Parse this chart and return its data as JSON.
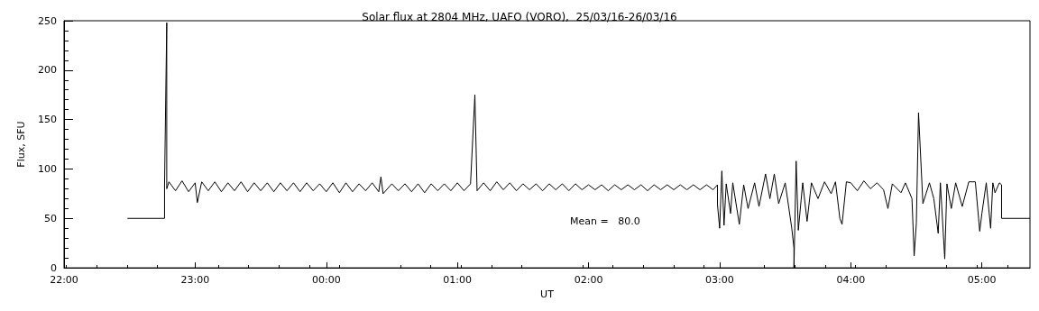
{
  "chart_data": {
    "type": "line",
    "title": "Solar flux at 2804 MHz, UAFO (VORO),  25/03/16-26/03/16",
    "xlabel": "UT",
    "ylabel": "Flux, SFU",
    "annotations": [
      "Mean =   80.0"
    ],
    "xlim": [
      "--03-25T22:00",
      "--03-26T05:22"
    ],
    "xticks": [
      {
        "value": "--03-25T22:00",
        "label": "22:00"
      },
      {
        "value": "--03-25T23:00",
        "label": "23:00"
      },
      {
        "value": "--03-26T00:00",
        "label": "00:00"
      },
      {
        "value": "--03-26T01:00",
        "label": "01:00"
      },
      {
        "value": "--03-26T02:00",
        "label": "02:00"
      },
      {
        "value": "--03-26T03:00",
        "label": "03:00"
      },
      {
        "value": "--03-26T04:00",
        "label": "04:00"
      },
      {
        "value": "--03-26T05:00",
        "label": "05:00"
      }
    ],
    "ylim": [
      0,
      250
    ],
    "yticks": [
      0,
      50,
      100,
      150,
      200,
      250
    ],
    "grid": false,
    "marker": "none",
    "line_style": "solid",
    "series": [
      {
        "color": "#000000",
        "x": [
          "--03-25T22:29",
          "--03-25T22:46",
          "--03-25T22:46",
          "--03-25T22:47",
          "--03-25T22:47",
          "--03-25T22:48",
          "--03-25T22:51",
          "--03-25T22:54",
          "--03-25T22:57",
          "--03-25T23:00",
          "--03-25T23:01",
          "--03-25T23:03",
          "--03-25T23:06",
          "--03-25T23:09",
          "--03-25T23:12",
          "--03-25T23:15",
          "--03-25T23:18",
          "--03-25T23:21",
          "--03-25T23:24",
          "--03-25T23:27",
          "--03-25T23:30",
          "--03-25T23:33",
          "--03-25T23:36",
          "--03-25T23:39",
          "--03-25T23:42",
          "--03-25T23:45",
          "--03-25T23:48",
          "--03-25T23:51",
          "--03-25T23:54",
          "--03-25T23:57",
          "--03-26T00:00",
          "--03-26T00:03",
          "--03-26T00:06",
          "--03-26T00:09",
          "--03-26T00:12",
          "--03-26T00:15",
          "--03-26T00:18",
          "--03-26T00:21",
          "--03-26T00:24",
          "--03-26T00:25",
          "--03-26T00:26",
          "--03-26T00:30",
          "--03-26T00:33",
          "--03-26T00:36",
          "--03-26T00:39",
          "--03-26T00:42",
          "--03-26T00:45",
          "--03-26T00:48",
          "--03-26T00:51",
          "--03-26T00:54",
          "--03-26T00:57",
          "--03-26T01:00",
          "--03-26T01:03",
          "--03-26T01:06",
          "--03-26T01:08",
          "--03-26T01:09",
          "--03-26T01:12",
          "--03-26T01:15",
          "--03-26T01:18",
          "--03-26T01:21",
          "--03-26T01:24",
          "--03-26T01:27",
          "--03-26T01:30",
          "--03-26T01:33",
          "--03-26T01:36",
          "--03-26T01:39",
          "--03-26T01:42",
          "--03-26T01:45",
          "--03-26T01:48",
          "--03-26T01:51",
          "--03-26T01:54",
          "--03-26T01:57",
          "--03-26T02:00",
          "--03-26T02:03",
          "--03-26T02:06",
          "--03-26T02:09",
          "--03-26T02:12",
          "--03-26T02:15",
          "--03-26T02:18",
          "--03-26T02:21",
          "--03-26T02:24",
          "--03-26T02:27",
          "--03-26T02:30",
          "--03-26T02:33",
          "--03-26T02:36",
          "--03-26T02:39",
          "--03-26T02:42",
          "--03-26T02:45",
          "--03-26T02:48",
          "--03-26T02:51",
          "--03-26T02:54",
          "--03-26T02:57",
          "--03-26T02:59",
          "--03-26T02:59",
          "--03-26T03:00",
          "--03-26T03:01",
          "--03-26T03:02",
          "--03-26T03:03",
          "--03-26T03:05",
          "--03-26T03:06",
          "--03-26T03:09",
          "--03-26T03:11",
          "--03-26T03:13",
          "--03-26T03:16",
          "--03-26T03:18",
          "--03-26T03:21",
          "--03-26T03:23",
          "--03-26T03:25",
          "--03-26T03:27",
          "--03-26T03:30",
          "--03-26T03:33",
          "--03-26T03:34",
          "--03-26T03:34",
          "--03-26T03:35",
          "--03-26T03:36",
          "--03-26T03:38",
          "--03-26T03:40",
          "--03-26T03:42",
          "--03-26T03:45",
          "--03-26T03:48",
          "--03-26T03:51",
          "--03-26T03:53",
          "--03-26T03:55",
          "--03-26T03:56",
          "--03-26T03:58",
          "--03-26T04:00",
          "--03-26T04:03",
          "--03-26T04:06",
          "--03-26T04:09",
          "--03-26T04:12",
          "--03-26T04:15",
          "--03-26T04:17",
          "--03-26T04:19",
          "--03-26T04:23",
          "--03-26T04:25",
          "--03-26T04:28",
          "--03-26T04:29",
          "--03-26T04:30",
          "--03-26T04:31",
          "--03-26T04:33",
          "--03-26T04:36",
          "--03-26T04:38",
          "--03-26T04:40",
          "--03-26T04:41",
          "--03-26T04:43",
          "--03-26T04:44",
          "--03-26T04:46",
          "--03-26T04:48",
          "--03-26T04:51",
          "--03-26T04:54",
          "--03-26T04:57",
          "--03-26T04:59",
          "--03-26T05:00",
          "--03-26T05:02",
          "--03-26T05:04",
          "--03-26T05:05",
          "--03-26T05:06",
          "--03-26T05:08",
          "--03-26T05:09",
          "--03-26T05:09",
          "--03-26T05:22"
        ],
        "values": [
          50,
          50,
          84,
          248,
          80,
          87,
          78,
          88,
          77,
          86,
          66,
          87,
          78,
          87,
          77,
          86,
          78,
          87,
          77,
          86,
          78,
          86,
          77,
          86,
          78,
          86,
          77,
          86,
          78,
          85,
          77,
          86,
          76,
          86,
          77,
          85,
          78,
          86,
          77,
          92,
          75,
          85,
          78,
          85,
          77,
          85,
          76,
          85,
          78,
          85,
          78,
          86,
          78,
          85,
          175,
          78,
          86,
          78,
          87,
          79,
          86,
          78,
          85,
          79,
          85,
          78,
          85,
          79,
          85,
          78,
          85,
          79,
          84,
          79,
          84,
          78,
          84,
          79,
          84,
          79,
          84,
          78,
          84,
          79,
          84,
          79,
          84,
          79,
          84,
          79,
          84,
          79,
          84,
          64,
          40,
          98,
          43,
          85,
          55,
          86,
          44,
          84,
          60,
          86,
          62,
          95,
          70,
          95,
          65,
          86,
          40,
          20,
          0,
          108,
          38,
          86,
          47,
          86,
          70,
          87,
          75,
          87,
          50,
          44,
          87,
          86,
          78,
          88,
          80,
          86,
          79,
          60,
          85,
          76,
          86,
          70,
          12,
          45,
          157,
          65,
          86,
          70,
          35,
          86,
          9,
          85,
          60,
          86,
          62,
          87,
          87,
          37,
          55,
          86,
          40,
          86,
          76,
          86,
          84,
          50,
          50
        ]
      }
    ]
  }
}
